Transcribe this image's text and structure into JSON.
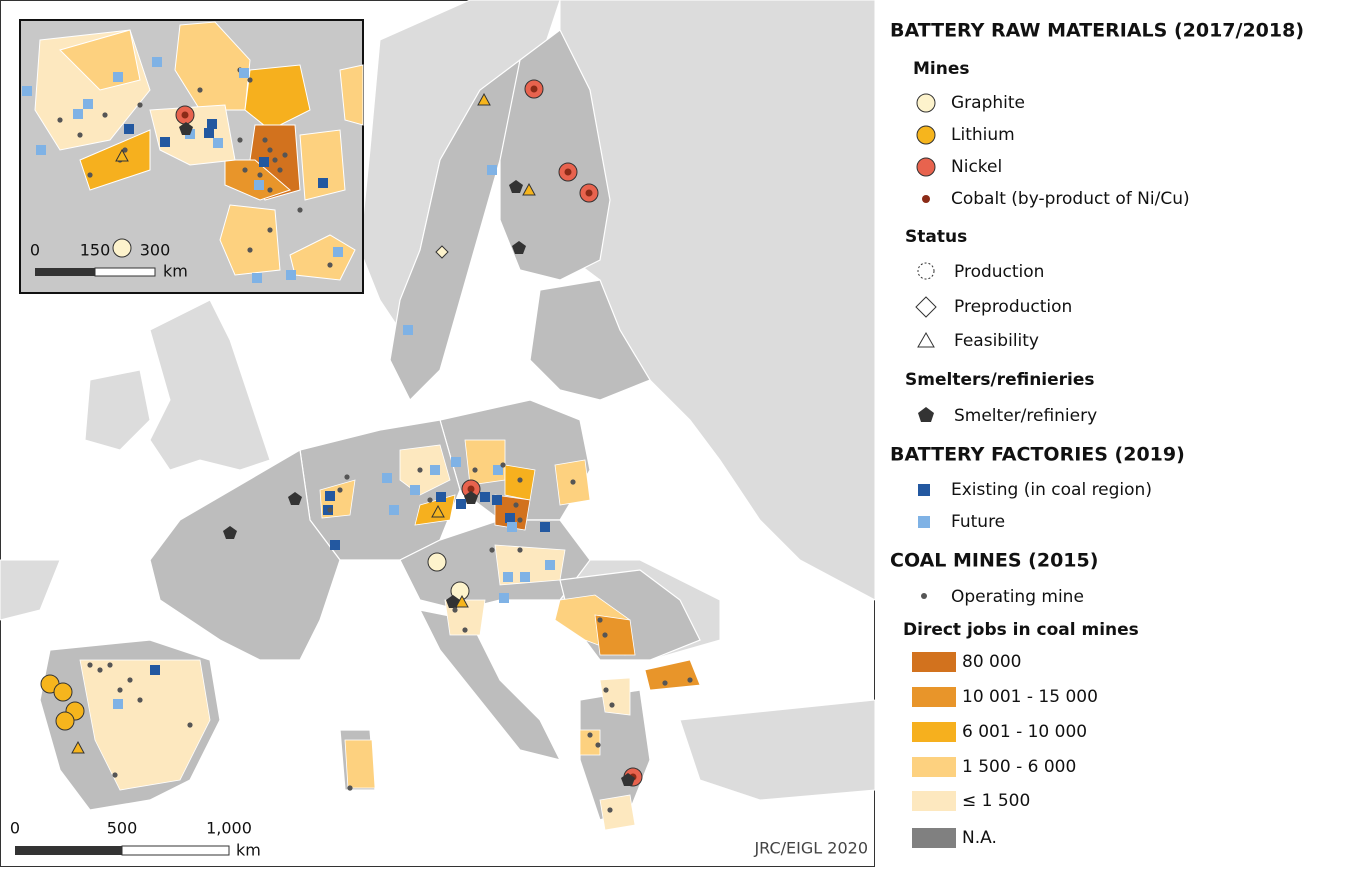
{
  "legend": {
    "title": "BATTERY RAW MATERIALS (2017/2018)",
    "mines": {
      "heading": "Mines",
      "items": [
        "Graphite",
        "Lithium",
        "Nickel",
        "Cobalt (by-product of Ni/Cu)"
      ]
    },
    "status": {
      "heading": "Status",
      "items": [
        "Production",
        "Preproduction",
        "Feasibility"
      ]
    },
    "smelters": {
      "heading": "Smelters/refinieries",
      "items": [
        "Smelter/refiniery"
      ]
    },
    "factories": {
      "heading": "BATTERY FACTORIES (2019)",
      "items": [
        "Existing (in coal region)",
        "Future"
      ]
    },
    "coal": {
      "heading": "COAL MINES (2015)",
      "items": [
        "Operating mine"
      ]
    },
    "jobs": {
      "heading": "Direct jobs in coal mines",
      "items": [
        "80 000",
        "10 001 - 15 000",
        "6 001 - 10 000",
        "1 500 - 6 000",
        "≤ 1 500",
        "N.A."
      ]
    }
  },
  "map": {
    "credit": "JRC/EIGL 2020",
    "scale_bar": {
      "labels": [
        "0",
        "500",
        "1,000"
      ],
      "unit": "km"
    },
    "inset_scale_bar": {
      "labels": [
        "0",
        "150",
        "300"
      ],
      "unit": "km"
    }
  }
}
